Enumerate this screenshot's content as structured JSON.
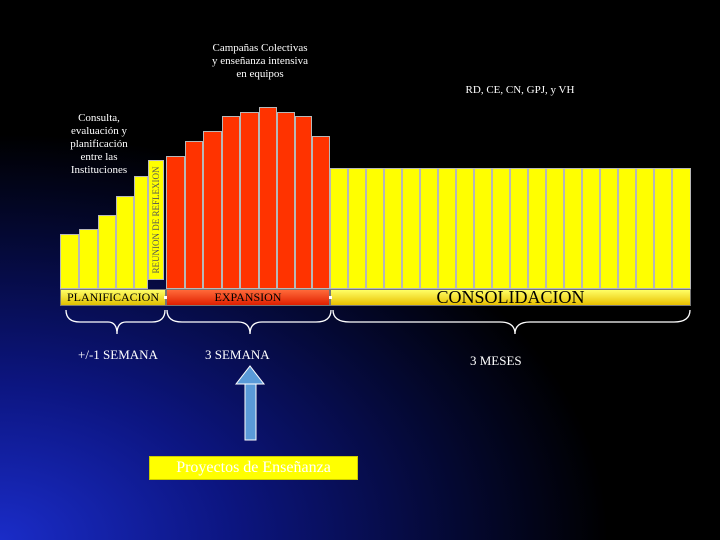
{
  "labels": {
    "campanas": [
      "Campañas Colectivas",
      "y enseñanza intensiva",
      "en equipos"
    ],
    "consulta": [
      "Consulta,",
      "evaluación y",
      "planificación",
      "entre las",
      "Instituciones"
    ],
    "institutions": "RD, CE, CN, GPJ, y VH",
    "reflexion": "REUNION DE REFLEXION"
  },
  "phases": {
    "planificacion": "PLANIFICACION",
    "expansion": "EXPANSION",
    "consolidacion": "CONSOLIDACION"
  },
  "durations": {
    "planificacion": "+/-1 SEMANA",
    "expansion": "3 SEMANA",
    "consolidacion": "3  MESES"
  },
  "proyectos": "Proyectos de Enseñanza",
  "colors": {
    "yellow": "#ffff00",
    "red": "#ff3300",
    "arrow": "#5a9ad8",
    "background_dark": "#000000",
    "background_blue": "#1a2cc8"
  }
}
